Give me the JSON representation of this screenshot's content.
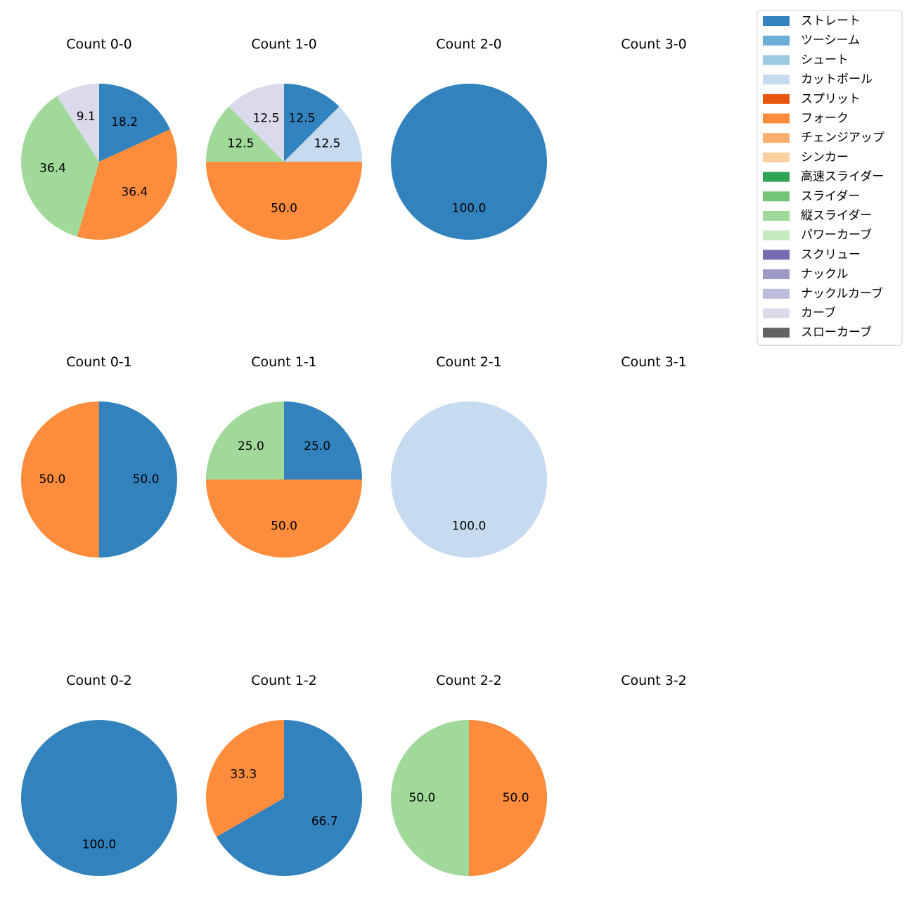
{
  "chart_data": {
    "type": "pie",
    "legend": {
      "placement": "top-right",
      "entries": [
        {
          "name": "ストレート",
          "color": "#3182bd"
        },
        {
          "name": "ツーシーム",
          "color": "#6baed6"
        },
        {
          "name": "シュート",
          "color": "#9ecae1"
        },
        {
          "name": "カットボール",
          "color": "#c6dbef"
        },
        {
          "name": "スプリット",
          "color": "#e6550d"
        },
        {
          "name": "フォーク",
          "color": "#fd8d3c"
        },
        {
          "name": "チェンジアップ",
          "color": "#fdae6b"
        },
        {
          "name": "シンカー",
          "color": "#fdd0a2"
        },
        {
          "name": "高速スライダー",
          "color": "#31a354"
        },
        {
          "name": "スライダー",
          "color": "#74c476"
        },
        {
          "name": "縦スライダー",
          "color": "#a1d99b"
        },
        {
          "name": "パワーカーブ",
          "color": "#c7e9c0"
        },
        {
          "name": "スクリュー",
          "color": "#756bb1"
        },
        {
          "name": "ナックル",
          "color": "#9e9ac8"
        },
        {
          "name": "ナックルカーブ",
          "color": "#bcbddc"
        },
        {
          "name": "カーブ",
          "color": "#dadaeb"
        },
        {
          "name": "スローカーブ",
          "color": "#636363"
        }
      ]
    },
    "pies": [
      {
        "title": "Count 0-0",
        "slices": [
          {
            "pitch": "ストレート",
            "value": 18.2,
            "label": "18.2"
          },
          {
            "pitch": "フォーク",
            "value": 36.4,
            "label": "36.4"
          },
          {
            "pitch": "縦スライダー",
            "value": 36.4,
            "label": "36.4"
          },
          {
            "pitch": "カーブ",
            "value": 9.1,
            "label": "9.1"
          }
        ]
      },
      {
        "title": "Count 1-0",
        "slices": [
          {
            "pitch": "ストレート",
            "value": 12.5,
            "label": "12.5"
          },
          {
            "pitch": "カットボール",
            "value": 12.5,
            "label": "12.5"
          },
          {
            "pitch": "フォーク",
            "value": 50.0,
            "label": "50.0"
          },
          {
            "pitch": "縦スライダー",
            "value": 12.5,
            "label": "12.5"
          },
          {
            "pitch": "カーブ",
            "value": 12.5,
            "label": "12.5"
          }
        ]
      },
      {
        "title": "Count 2-0",
        "slices": [
          {
            "pitch": "ストレート",
            "value": 100.0,
            "label": "100.0"
          }
        ]
      },
      {
        "title": "Count 3-0",
        "slices": []
      },
      {
        "title": "Count 0-1",
        "slices": [
          {
            "pitch": "ストレート",
            "value": 50.0,
            "label": "50.0"
          },
          {
            "pitch": "フォーク",
            "value": 50.0,
            "label": "50.0"
          }
        ]
      },
      {
        "title": "Count 1-1",
        "slices": [
          {
            "pitch": "ストレート",
            "value": 25.0,
            "label": "25.0"
          },
          {
            "pitch": "フォーク",
            "value": 50.0,
            "label": "50.0"
          },
          {
            "pitch": "縦スライダー",
            "value": 25.0,
            "label": "25.0"
          }
        ]
      },
      {
        "title": "Count 2-1",
        "slices": [
          {
            "pitch": "カットボール",
            "value": 100.0,
            "label": "100.0"
          }
        ]
      },
      {
        "title": "Count 3-1",
        "slices": []
      },
      {
        "title": "Count 0-2",
        "slices": [
          {
            "pitch": "ストレート",
            "value": 100.0,
            "label": "100.0"
          }
        ]
      },
      {
        "title": "Count 1-2",
        "slices": [
          {
            "pitch": "ストレート",
            "value": 66.7,
            "label": "66.7"
          },
          {
            "pitch": "フォーク",
            "value": 33.3,
            "label": "33.3"
          }
        ]
      },
      {
        "title": "Count 2-2",
        "slices": [
          {
            "pitch": "フォーク",
            "value": 50.0,
            "label": "50.0"
          },
          {
            "pitch": "縦スライダー",
            "value": 50.0,
            "label": "50.0"
          }
        ]
      },
      {
        "title": "Count 3-2",
        "slices": []
      }
    ]
  }
}
